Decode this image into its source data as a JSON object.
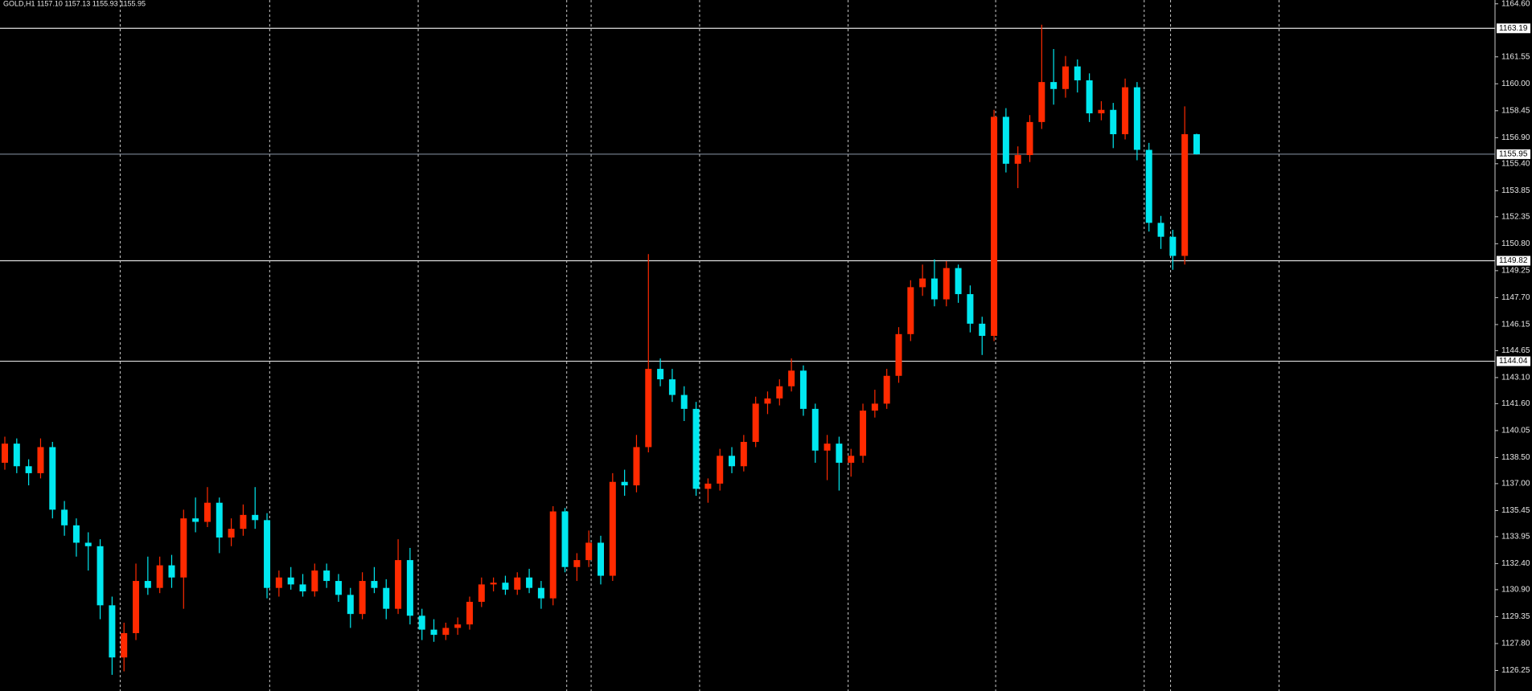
{
  "header": "GOLD,H1  1157.10 1157.13 1155.93 1155.95",
  "chart_data": {
    "type": "candlestick",
    "title": "GOLD,H1",
    "up_color": "#ff2a00",
    "down_color": "#00e8f0",
    "ylim": [
      1125.07,
      1164.82
    ],
    "yticks": [
      {
        "value": 1164.6,
        "label": "1164.60"
      },
      1161.55,
      {
        "value": 1160.0,
        "label": "1160.00"
      },
      1158.45,
      {
        "value": 1156.9,
        "label": "1156.90"
      },
      {
        "value": 1155.4,
        "label": "1155.40"
      },
      1153.85,
      1152.35,
      {
        "value": 1150.8,
        "label": "1150.80"
      },
      1149.25,
      {
        "value": 1147.7,
        "label": "1147.70"
      },
      1146.15,
      1144.65,
      {
        "value": 1143.1,
        "label": "1143.10"
      },
      {
        "value": 1141.6,
        "label": "1141.60"
      },
      1140.05,
      {
        "value": 1138.5,
        "label": "1138.50"
      },
      {
        "value": 1137.0,
        "label": "1137.00"
      },
      1135.45,
      1133.95,
      {
        "value": 1132.4,
        "label": "1132.40"
      },
      {
        "value": 1130.9,
        "label": "1130.90"
      },
      1129.35,
      {
        "value": 1127.8,
        "label": "1127.80"
      },
      1126.25
    ],
    "levels": [
      1163.19,
      1149.82,
      1144.04
    ],
    "bid": 1155.95,
    "candles": [
      [
        1138.2,
        1139.7,
        1137.8,
        1139.3
      ],
      [
        1139.3,
        1139.6,
        1137.6,
        1138.0
      ],
      [
        1138.0,
        1138.4,
        1136.9,
        1137.6
      ],
      [
        1137.6,
        1139.6,
        1137.3,
        1139.1
      ],
      [
        1139.1,
        1139.4,
        1135.0,
        1135.5
      ],
      [
        1135.5,
        1136.0,
        1134.0,
        1134.6
      ],
      [
        1134.6,
        1135.0,
        1132.8,
        1133.6
      ],
      [
        1133.6,
        1134.2,
        1132.0,
        1133.4
      ],
      [
        1133.4,
        1133.8,
        1129.2,
        1130.0
      ],
      [
        1130.0,
        1130.5,
        1126.0,
        1127.0
      ],
      [
        1127.0,
        1129.0,
        1126.2,
        1128.4
      ],
      [
        1128.4,
        1132.4,
        1128.0,
        1131.4
      ],
      [
        1131.4,
        1132.8,
        1130.6,
        1131.0
      ],
      [
        1131.0,
        1132.8,
        1130.7,
        1132.3
      ],
      [
        1132.3,
        1132.9,
        1131.0,
        1131.6
      ],
      [
        1131.6,
        1135.5,
        1129.8,
        1135.0
      ],
      [
        1135.0,
        1136.2,
        1134.2,
        1134.8
      ],
      [
        1134.8,
        1136.8,
        1134.5,
        1135.9
      ],
      [
        1135.9,
        1136.2,
        1133.0,
        1133.9
      ],
      [
        1133.9,
        1135.0,
        1133.4,
        1134.4
      ],
      [
        1134.4,
        1135.8,
        1134.0,
        1135.2
      ],
      [
        1135.2,
        1136.8,
        1134.4,
        1134.9
      ],
      [
        1134.9,
        1135.3,
        1130.4,
        1131.0
      ],
      [
        1131.0,
        1132.0,
        1130.5,
        1131.6
      ],
      [
        1131.6,
        1132.2,
        1130.9,
        1131.2
      ],
      [
        1131.2,
        1131.8,
        1130.5,
        1130.8
      ],
      [
        1130.8,
        1132.4,
        1130.5,
        1132.0
      ],
      [
        1132.0,
        1132.4,
        1131.0,
        1131.4
      ],
      [
        1131.4,
        1131.8,
        1130.2,
        1130.6
      ],
      [
        1130.6,
        1131.0,
        1128.7,
        1129.5
      ],
      [
        1129.5,
        1131.9,
        1129.2,
        1131.4
      ],
      [
        1131.4,
        1132.2,
        1130.7,
        1131.0
      ],
      [
        1131.0,
        1131.5,
        1129.2,
        1129.8
      ],
      [
        1129.8,
        1133.8,
        1129.5,
        1132.6
      ],
      [
        1132.6,
        1133.3,
        1128.9,
        1129.4
      ],
      [
        1129.4,
        1129.8,
        1128.0,
        1128.6
      ],
      [
        1128.6,
        1129.2,
        1127.9,
        1128.3
      ],
      [
        1128.3,
        1129.0,
        1128.0,
        1128.7
      ],
      [
        1128.7,
        1129.3,
        1128.3,
        1128.9
      ],
      [
        1128.9,
        1130.5,
        1128.6,
        1130.2
      ],
      [
        1130.2,
        1131.6,
        1129.9,
        1131.2
      ],
      [
        1131.2,
        1131.6,
        1130.8,
        1131.3
      ],
      [
        1131.3,
        1131.7,
        1130.6,
        1130.9
      ],
      [
        1130.9,
        1131.9,
        1130.6,
        1131.6
      ],
      [
        1131.6,
        1132.1,
        1130.7,
        1131.0
      ],
      [
        1131.0,
        1131.4,
        1129.8,
        1130.4
      ],
      [
        1130.4,
        1135.7,
        1130.0,
        1135.4
      ],
      [
        1135.4,
        1135.6,
        1131.9,
        1132.2
      ],
      [
        1132.2,
        1133.0,
        1131.4,
        1132.6
      ],
      [
        1132.6,
        1134.3,
        1132.2,
        1133.6
      ],
      [
        1133.6,
        1134.0,
        1131.2,
        1131.7
      ],
      [
        1131.7,
        1137.6,
        1131.4,
        1137.1
      ],
      [
        1137.1,
        1137.8,
        1136.3,
        1136.9
      ],
      [
        1136.9,
        1139.8,
        1136.5,
        1139.1
      ],
      [
        1139.1,
        1150.2,
        1138.8,
        1143.6
      ],
      [
        1143.6,
        1144.2,
        1142.6,
        1143.0
      ],
      [
        1143.0,
        1143.6,
        1141.7,
        1142.1
      ],
      [
        1142.1,
        1142.6,
        1140.6,
        1141.3
      ],
      [
        1141.3,
        1141.7,
        1136.3,
        1136.7
      ],
      [
        1136.7,
        1137.3,
        1135.9,
        1137.0
      ],
      [
        1137.0,
        1139.0,
        1136.6,
        1138.6
      ],
      [
        1138.6,
        1139.1,
        1137.6,
        1138.0
      ],
      [
        1138.0,
        1139.8,
        1137.7,
        1139.4
      ],
      [
        1139.4,
        1142.0,
        1139.1,
        1141.6
      ],
      [
        1141.6,
        1142.3,
        1141.0,
        1141.9
      ],
      [
        1141.9,
        1143.0,
        1141.5,
        1142.6
      ],
      [
        1142.6,
        1144.2,
        1142.3,
        1143.5
      ],
      [
        1143.5,
        1143.8,
        1140.9,
        1141.3
      ],
      [
        1141.3,
        1141.6,
        1138.2,
        1138.9
      ],
      [
        1138.9,
        1139.8,
        1137.2,
        1139.3
      ],
      [
        1139.3,
        1139.7,
        1136.6,
        1138.2
      ],
      [
        1138.2,
        1139.0,
        1137.4,
        1138.6
      ],
      [
        1138.6,
        1141.6,
        1138.2,
        1141.2
      ],
      [
        1141.2,
        1142.4,
        1140.8,
        1141.6
      ],
      [
        1141.6,
        1143.6,
        1141.3,
        1143.2
      ],
      [
        1143.2,
        1146.0,
        1142.8,
        1145.6
      ],
      [
        1145.6,
        1148.7,
        1145.2,
        1148.3
      ],
      [
        1148.3,
        1149.6,
        1147.8,
        1148.8
      ],
      [
        1148.8,
        1149.9,
        1147.2,
        1147.6
      ],
      [
        1147.6,
        1149.8,
        1147.2,
        1149.4
      ],
      [
        1149.4,
        1149.6,
        1147.4,
        1147.9
      ],
      [
        1147.9,
        1148.4,
        1145.7,
        1146.2
      ],
      [
        1146.2,
        1146.6,
        1144.4,
        1145.5
      ],
      [
        1145.5,
        1158.5,
        1145.2,
        1158.1
      ],
      [
        1158.1,
        1158.6,
        1154.9,
        1155.4
      ],
      [
        1155.4,
        1156.4,
        1154.0,
        1155.9
      ],
      [
        1155.9,
        1158.2,
        1155.5,
        1157.8
      ],
      [
        1157.8,
        1163.4,
        1157.4,
        1160.1
      ],
      [
        1160.1,
        1162.0,
        1158.8,
        1159.7
      ],
      [
        1159.7,
        1161.6,
        1159.2,
        1161.0
      ],
      [
        1161.0,
        1161.4,
        1159.5,
        1160.2
      ],
      [
        1160.2,
        1160.6,
        1157.8,
        1158.3
      ],
      [
        1158.3,
        1159.0,
        1157.9,
        1158.5
      ],
      [
        1158.5,
        1158.9,
        1156.3,
        1157.1
      ],
      [
        1157.1,
        1160.3,
        1156.8,
        1159.8
      ],
      [
        1159.8,
        1160.1,
        1155.6,
        1156.2
      ],
      [
        1156.2,
        1156.6,
        1151.5,
        1152.0
      ],
      [
        1152.0,
        1152.4,
        1150.5,
        1151.2
      ],
      [
        1151.2,
        1151.6,
        1149.3,
        1150.1
      ],
      [
        1150.1,
        1158.7,
        1149.6,
        1157.1
      ],
      [
        1157.1,
        1157.13,
        1155.93,
        1155.95
      ]
    ]
  }
}
